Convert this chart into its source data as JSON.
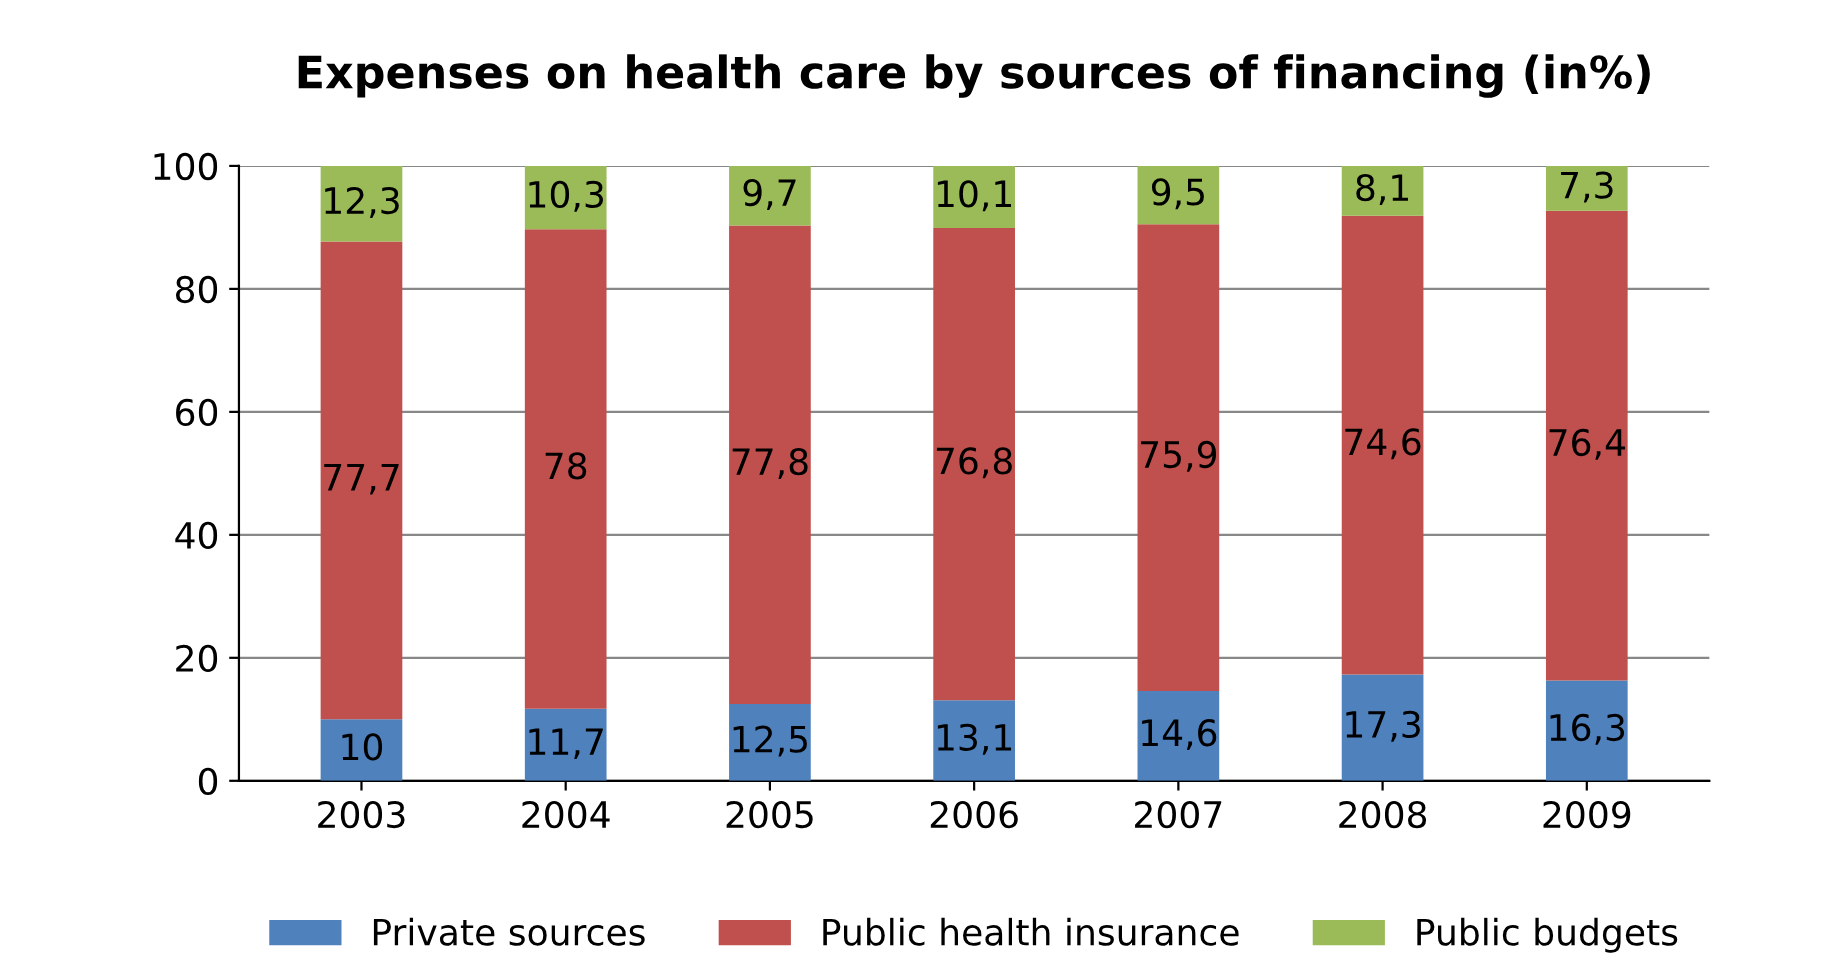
{
  "chart_data": {
    "type": "bar",
    "stacked": true,
    "title": "Expenses on health care by sources of financing (in%)",
    "categories": [
      "2003",
      "2004",
      "2005",
      "2006",
      "2007",
      "2008",
      "2009"
    ],
    "series": [
      {
        "name": "Private sources",
        "color": "#4f81bd",
        "values": [
          10,
          11.7,
          12.5,
          13.1,
          14.6,
          17.3,
          16.3
        ],
        "value_labels": [
          "10",
          "11,7",
          "12,5",
          "13,1",
          "14,6",
          "17,3",
          "16,3"
        ]
      },
      {
        "name": "Public health insurance",
        "color": "#c0504d",
        "values": [
          77.7,
          78,
          77.8,
          76.8,
          75.9,
          74.6,
          76.4
        ],
        "value_labels": [
          "77,7",
          "78",
          "77,8",
          "76,8",
          "75,9",
          "74,6",
          "76,4"
        ]
      },
      {
        "name": "Public budgets",
        "color": "#9bbb59",
        "values": [
          12.3,
          10.3,
          9.7,
          10.1,
          9.5,
          8.1,
          7.3
        ],
        "value_labels": [
          "12,3",
          "10,3",
          "9,7",
          "10,1",
          "9,5",
          "8,1",
          "7,3"
        ]
      }
    ],
    "ylim": [
      0,
      100
    ],
    "yticks": [
      0,
      20,
      40,
      60,
      80,
      100
    ],
    "grid": "y",
    "legend": "bottom"
  }
}
